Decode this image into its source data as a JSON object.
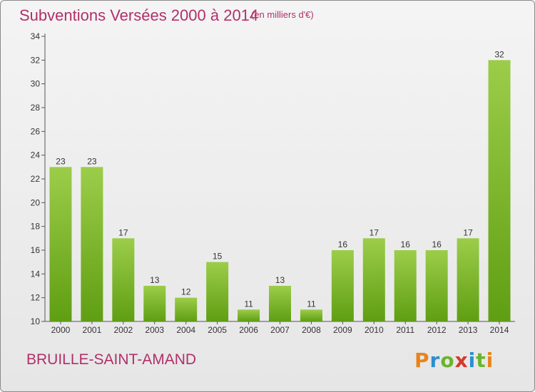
{
  "header": {
    "title": "Subventions Versées 2000 à 2014",
    "subtitle": "(en milliers d'€)"
  },
  "footer": {
    "commune": "BRUILLE-SAINT-AMAND",
    "logo": "Proxiti"
  },
  "colors": {
    "bar_top": "#9ccd4a",
    "bar_bottom": "#5f9e12",
    "title": "#b0306a"
  },
  "chart_data": {
    "type": "bar",
    "title": "Subventions Versées 2000 à 2014",
    "subtitle": "(en milliers d'€)",
    "xlabel": "",
    "ylabel": "",
    "categories": [
      "2000",
      "2001",
      "2002",
      "2003",
      "2004",
      "2005",
      "2006",
      "2007",
      "2008",
      "2009",
      "2010",
      "2011",
      "2012",
      "2013",
      "2014"
    ],
    "values": [
      23,
      23,
      17,
      13,
      12,
      15,
      11,
      13,
      11,
      16,
      17,
      16,
      16,
      17,
      32
    ],
    "ylim": [
      10,
      34
    ],
    "yticks": [
      10,
      12,
      14,
      16,
      18,
      20,
      22,
      24,
      26,
      28,
      30,
      32,
      34
    ],
    "grid": false,
    "legend": "none"
  }
}
